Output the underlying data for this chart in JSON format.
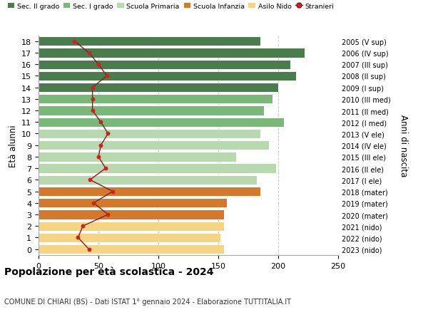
{
  "ages": [
    18,
    17,
    16,
    15,
    14,
    13,
    12,
    11,
    10,
    9,
    8,
    7,
    6,
    5,
    4,
    3,
    2,
    1,
    0
  ],
  "right_labels": [
    "2005 (V sup)",
    "2006 (IV sup)",
    "2007 (III sup)",
    "2008 (II sup)",
    "2009 (I sup)",
    "2010 (III med)",
    "2011 (II med)",
    "2012 (I med)",
    "2013 (V ele)",
    "2014 (IV ele)",
    "2015 (III ele)",
    "2016 (II ele)",
    "2017 (I ele)",
    "2018 (mater)",
    "2019 (mater)",
    "2020 (mater)",
    "2021 (nido)",
    "2022 (nido)",
    "2023 (nido)"
  ],
  "bar_values": [
    185,
    222,
    210,
    215,
    200,
    195,
    188,
    205,
    185,
    192,
    165,
    198,
    182,
    185,
    157,
    155,
    155,
    152,
    155
  ],
  "bar_colors": [
    "#4a7c4e",
    "#4a7c4e",
    "#4a7c4e",
    "#4a7c4e",
    "#4a7c4e",
    "#7ab87a",
    "#7ab87a",
    "#7ab87a",
    "#b8d8b0",
    "#b8d8b0",
    "#b8d8b0",
    "#b8d8b0",
    "#b8d8b0",
    "#d4782a",
    "#d4782a",
    "#d4782a",
    "#f5d484",
    "#f5d484",
    "#f5d484"
  ],
  "stranieri_values": [
    30,
    42,
    50,
    57,
    45,
    45,
    45,
    52,
    58,
    52,
    50,
    56,
    43,
    62,
    46,
    58,
    37,
    33,
    42
  ],
  "legend_labels": [
    "Sec. II grado",
    "Sec. I grado",
    "Scuola Primaria",
    "Scuola Infanzia",
    "Asilo Nido",
    "Stranieri"
  ],
  "legend_colors": [
    "#4a7c4e",
    "#7ab87a",
    "#b8d8b0",
    "#d4782a",
    "#f5d484",
    "#cc2222"
  ],
  "ylabel_left": "Età alunni",
  "ylabel_right": "Anni di nascita",
  "xlim": [
    0,
    250
  ],
  "xticks": [
    0,
    50,
    100,
    150,
    200,
    250
  ],
  "title": "Popolazione per età scolastica - 2024",
  "subtitle": "COMUNE DI CHIARI (BS) - Dati ISTAT 1° gennaio 2024 - Elaborazione TUTTITALIA.IT",
  "bar_height": 0.82,
  "background_color": "#ffffff",
  "grid_color": "#cccccc",
  "stranieri_line_color": "#8b1a1a",
  "stranieri_dot_color": "#cc2222"
}
